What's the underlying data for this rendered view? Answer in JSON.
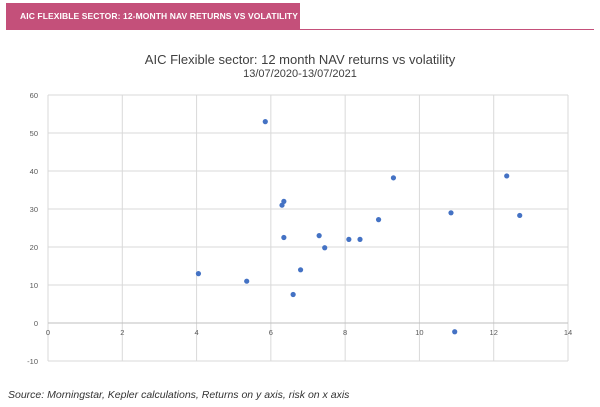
{
  "banner": {
    "label": "AIC FLEXIBLE SECTOR: 12-MONTH NAV RETURNS VS VOLATILITY",
    "color": "#c4507a"
  },
  "chart_data": {
    "type": "scatter",
    "title": "AIC Flexible sector: 12 month NAV returns vs volatility",
    "subtitle": "13/07/2020-13/07/2021",
    "xlabel": "",
    "ylabel": "",
    "xlim": [
      0,
      14
    ],
    "ylim": [
      -10,
      60
    ],
    "x_ticks": [
      0,
      2,
      4,
      6,
      8,
      10,
      12,
      14
    ],
    "y_ticks": [
      -10,
      0,
      10,
      20,
      30,
      40,
      50,
      60
    ],
    "grid": true,
    "marker_color": "#4472c4",
    "points": [
      {
        "x": 4.05,
        "y": 13.0
      },
      {
        "x": 5.35,
        "y": 11.0
      },
      {
        "x": 5.85,
        "y": 53.0
      },
      {
        "x": 6.3,
        "y": 31.0
      },
      {
        "x": 6.35,
        "y": 32.0
      },
      {
        "x": 6.35,
        "y": 22.5
      },
      {
        "x": 6.6,
        "y": 7.5
      },
      {
        "x": 6.8,
        "y": 14.0
      },
      {
        "x": 7.3,
        "y": 23.0
      },
      {
        "x": 7.45,
        "y": 19.8
      },
      {
        "x": 8.1,
        "y": 22.0
      },
      {
        "x": 8.4,
        "y": 22.0
      },
      {
        "x": 8.9,
        "y": 27.2
      },
      {
        "x": 9.3,
        "y": 38.2
      },
      {
        "x": 10.85,
        "y": 29.0
      },
      {
        "x": 10.95,
        "y": -2.3
      },
      {
        "x": 12.35,
        "y": 38.7
      },
      {
        "x": 12.7,
        "y": 28.3
      }
    ]
  },
  "source_note": "Source: Morningstar, Kepler calculations, Returns on y axis, risk on x axis"
}
